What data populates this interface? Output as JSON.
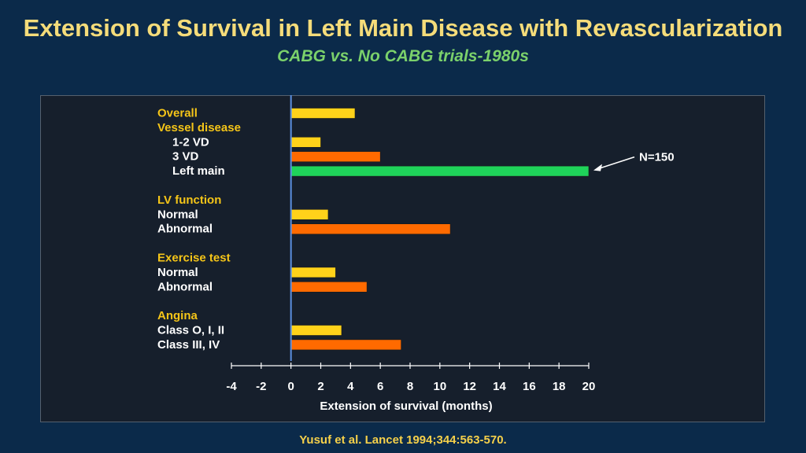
{
  "header": {
    "title": "Extension of Survival in Left Main Disease with Revascularization",
    "subtitle": "CABG vs. No CABG trials-1980s"
  },
  "footer": {
    "citation": "Yusuf et al. Lancet 1994;344:563-570."
  },
  "colors": {
    "background": "#0b2a4a",
    "panel": "#161f2c",
    "title": "#f5dc7a",
    "subtitle": "#7bd16b",
    "group_label": "#f5c518",
    "yellow_bar": "#ffd21a",
    "orange_bar": "#ff6a00",
    "green_bar": "#1fd35a",
    "zero_line": "#5b8fe0"
  },
  "chart_data": {
    "type": "bar",
    "orientation": "horizontal",
    "title": "Extension of Survival in Left Main Disease with Revascularization",
    "subtitle": "CABG vs. No CABG trials-1980s",
    "xlabel": "Extension of survival (months)",
    "ylabel": "",
    "xlim": [
      -4,
      20
    ],
    "xticks": [
      -4,
      -2,
      0,
      2,
      4,
      6,
      8,
      10,
      12,
      14,
      16,
      18,
      20
    ],
    "grid": false,
    "rows": [
      {
        "label": "Overall",
        "kind": "group",
        "value": 4.3,
        "color": "yellow"
      },
      {
        "label": "Vessel disease",
        "kind": "group",
        "value": null
      },
      {
        "label": "1-2 VD",
        "kind": "sub",
        "value": 2.0,
        "color": "yellow"
      },
      {
        "label": "3 VD",
        "kind": "sub",
        "value": 6.0,
        "color": "orange"
      },
      {
        "label": "Left main",
        "kind": "sub",
        "value": 20.0,
        "color": "green"
      },
      {
        "label": "",
        "kind": "spacer",
        "value": null
      },
      {
        "label": "LV function",
        "kind": "group",
        "value": null
      },
      {
        "label": "Normal",
        "kind": "item",
        "value": 2.5,
        "color": "yellow"
      },
      {
        "label": "Abnormal",
        "kind": "item",
        "value": 10.7,
        "color": "orange"
      },
      {
        "label": "",
        "kind": "spacer",
        "value": null
      },
      {
        "label": "Exercise test",
        "kind": "group",
        "value": null
      },
      {
        "label": "Normal",
        "kind": "item",
        "value": 3.0,
        "color": "yellow"
      },
      {
        "label": "Abnormal",
        "kind": "item",
        "value": 5.1,
        "color": "orange"
      },
      {
        "label": "",
        "kind": "spacer",
        "value": null
      },
      {
        "label": "Angina",
        "kind": "group",
        "value": null
      },
      {
        "label": "Class O, I, II",
        "kind": "item",
        "value": 3.4,
        "color": "yellow"
      },
      {
        "label": "Class III, IV",
        "kind": "item",
        "value": 7.4,
        "color": "orange"
      }
    ],
    "annotation": {
      "text": "N=150",
      "points_to_row": "Left main"
    }
  }
}
